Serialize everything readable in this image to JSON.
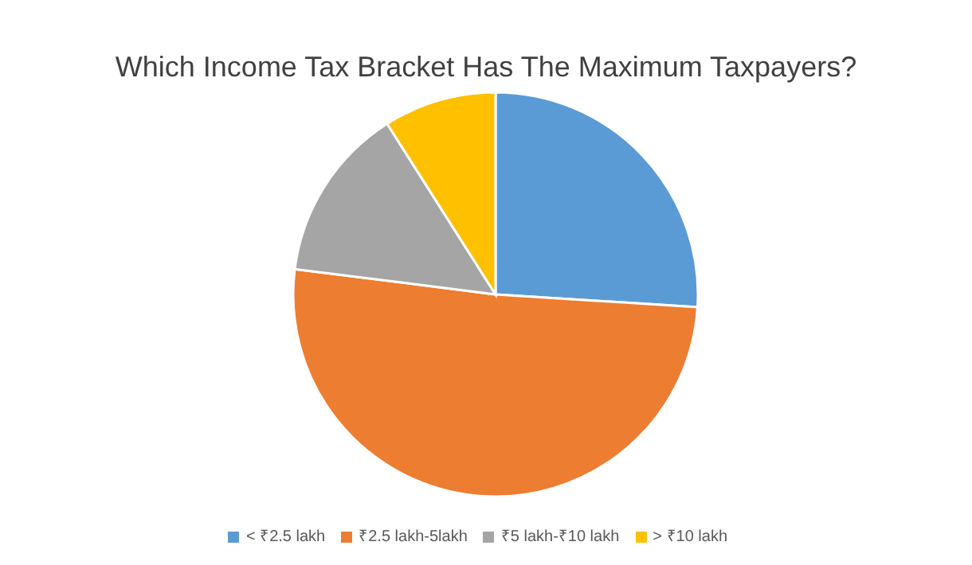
{
  "chart_data": {
    "type": "pie",
    "title": "Which Income Tax Bracket Has The Maximum Taxpayers?",
    "categories": [
      "< ₹2.5 lakh",
      "₹2.5 lakh-5lakh",
      "₹5 lakh-₹10 lakh",
      "> ₹10 lakh"
    ],
    "values": [
      26,
      51,
      14,
      9
    ],
    "colors": [
      "#5b9bd5",
      "#ed7d31",
      "#a5a5a5",
      "#ffc000"
    ],
    "legend": "bottom"
  }
}
